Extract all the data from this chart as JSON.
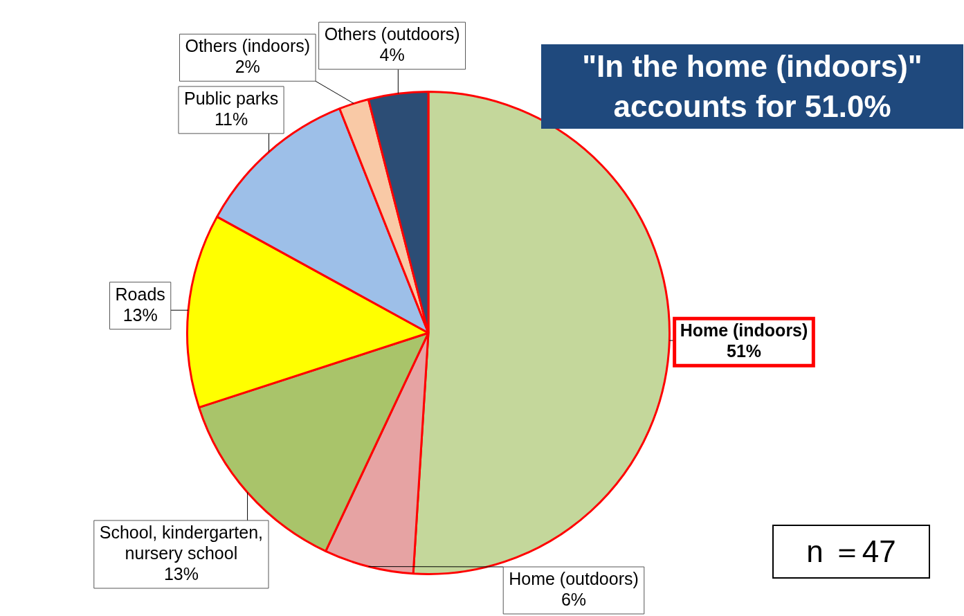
{
  "chart_data": {
    "type": "pie",
    "categories": [
      "Home (indoors)",
      "Home (outdoors)",
      "School, kindergarten, nursery school",
      "Roads",
      "Public parks",
      "Others (indoors)",
      "Others (outdoors)"
    ],
    "values": [
      51,
      6,
      13,
      13,
      11,
      2,
      4
    ],
    "value_labels": [
      "51%",
      "6%",
      "13%",
      "13%",
      "11%",
      "2%",
      "4%"
    ],
    "colors": [
      "#c4d79b",
      "#e6a3a3",
      "#a9c46a",
      "#ffff00",
      "#9dbfe8",
      "#f9c9a6",
      "#2c4d75"
    ],
    "legend": false,
    "annotations": [
      "\"In the home (indoors)\" accounts for 51.0%",
      "n ＝47"
    ]
  }
}
